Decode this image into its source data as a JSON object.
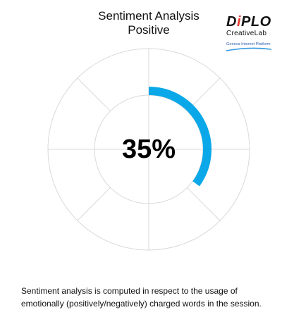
{
  "header": {
    "title_line1": "Sentiment Analysis",
    "title_line2": "Positive"
  },
  "logo": {
    "brand_main": "D",
    "brand_accent": "i",
    "brand_rest": "PLO",
    "sub_line1": "CreativeLab",
    "sub_line2": "Geneva Internet Platform"
  },
  "chart_data": {
    "type": "gauge",
    "value": 35,
    "value_label": "35%",
    "max": 100,
    "arc_color": "#0aa8e8",
    "grid_color": "#d9d9d9"
  },
  "footer": {
    "note_line1": "Sentiment analysis is computed in respect to the usage of",
    "note_line2": "emotionally (positively/negatively) charged words in the session."
  }
}
